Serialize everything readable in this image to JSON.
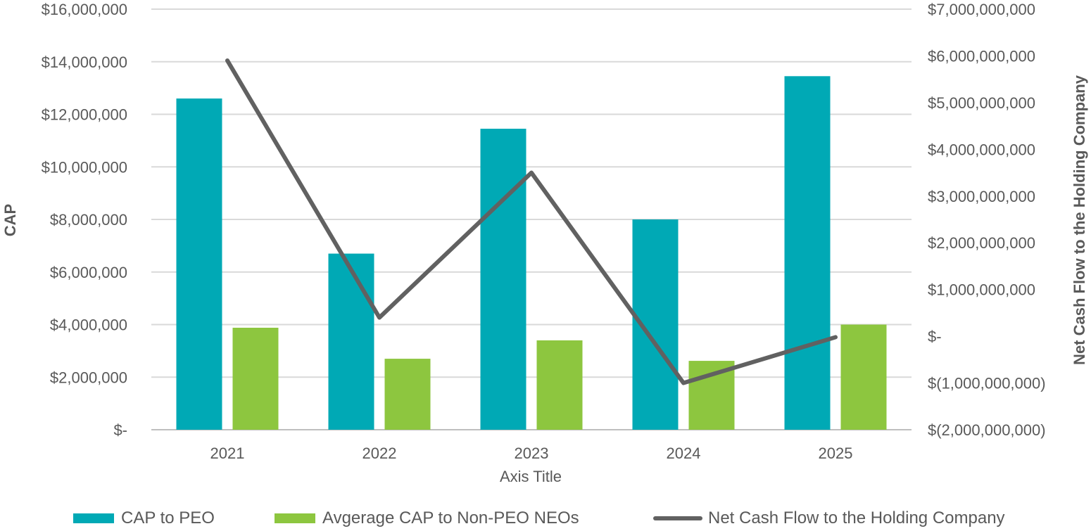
{
  "chart_data": {
    "type": "bar",
    "categories": [
      "2021",
      "2022",
      "2023",
      "2024",
      "2025"
    ],
    "series": [
      {
        "name": "CAP to PEO",
        "type": "bar",
        "axis": "left",
        "color": "#00A9B5",
        "values": [
          12600000,
          6700000,
          11450000,
          8000000,
          13450000
        ]
      },
      {
        "name": "Avgerage CAP to Non-PEO NEOs",
        "type": "bar",
        "axis": "left",
        "color": "#8DC63F",
        "values": [
          3880000,
          2700000,
          3400000,
          2620000,
          4000000
        ]
      },
      {
        "name": "Net Cash Flow to the Holding Company",
        "type": "line",
        "axis": "right",
        "color": "#616161",
        "values": [
          5900000000,
          400000000,
          3500000000,
          -1000000000,
          -20000000
        ]
      }
    ],
    "xlabel": "Axis Title",
    "ylabel": "CAP",
    "y2label": "Net Cash Flow to the Holding Company",
    "ylim": [
      0,
      16000000
    ],
    "y2lim": [
      -2000000000,
      7000000000
    ],
    "yticks": [
      "$16,000,000",
      "$14,000,000",
      "$12,000,000",
      "$10,000,000",
      "$8,000,000",
      "$6,000,000",
      "$4,000,000",
      "$2,000,000",
      "$-"
    ],
    "y2ticks": [
      "$7,000,000,000",
      "$6,000,000,000",
      "$5,000,000,000",
      "$4,000,000,000",
      "$3,000,000,000",
      "$2,000,000,000",
      "$1,000,000,000",
      "$-",
      "$(1,000,000,000)",
      "$(2,000,000,000)"
    ],
    "grid": true,
    "legend_position": "bottom"
  }
}
